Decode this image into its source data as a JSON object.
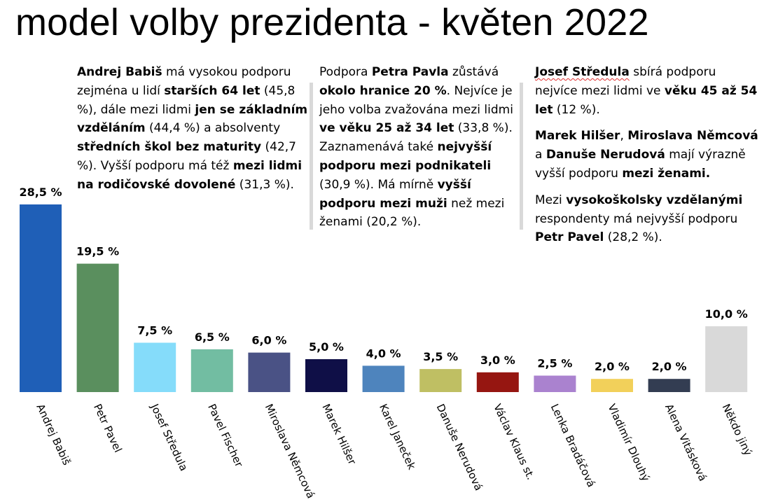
{
  "title": "model volby prezidenta - květen 2022",
  "notes": {
    "n1": {
      "name": "Andrej Babiš",
      "t1": " má vysokou podporu zejména u lidí ",
      "b1": "starších 64 let",
      "t2": " (45,8 %), dále mezi lidmi ",
      "b2": "jen se základním vzděláním",
      "t3": " (44,4 %) a absolventy ",
      "b3": "středních škol bez maturity",
      "t4": " (42,7 %). Vyšší podporu má též ",
      "b4": "mezi lidmi na rodičovské dovolené",
      "t5": " (31,3 %)."
    },
    "n2": {
      "t1": "Podpora ",
      "b1": "Petra Pavla",
      "t2": " zůstává ",
      "b2": "okolo hranice 20 %",
      "t3": ". Nejvíce je jeho volba zvažována mezi lidmi ",
      "b3": "ve věku 25 až 34 let",
      "t4": " (33,8 %). Zaznamenává také ",
      "b4": "nejvyšší podporu mezi podnikateli",
      "t5": " (30,9 %). Má mírně ",
      "b5": "vyšší podporu mezi muži",
      "t6": " než mezi ženami (20,2 %)."
    },
    "n3": {
      "p1_b1": "Josef Středula",
      "p1_t1": " sbírá podporu nejvíce mezi lidmi ve ",
      "p1_b2": "věku 45 až 54 let",
      "p1_t2": " (12 %).",
      "p2_b1": "Marek Hilšer",
      "p2_t1": ", ",
      "p2_b2": "Miroslava Němcová",
      "p2_t2": " a ",
      "p2_b3": "Danuše Nerudová",
      "p2_t3": " mají výrazně vyšší podporu ",
      "p2_b4": "mezi ženami.",
      "p3_t1": "Mezi ",
      "p3_b1": "vysokoškolsky vzdělanými",
      "p3_t2": " respondenty má nejvyšší podporu ",
      "p3_b2": "Petr Pavel",
      "p3_t3": " (28,2 %)."
    }
  },
  "chart_data": {
    "type": "bar",
    "categories": [
      "Andrej Babiš",
      "Petr Pavel",
      "Josef Středula",
      "Pavel Fischer",
      "Miroslava Němcová",
      "Marek Hilšer",
      "Karel Janeček",
      "Danuše Nerudová",
      "Václav Klaus st.",
      "Lenka Bradáčová",
      "Vladimír Dlouhý",
      "Alena Vitásková",
      "Někdo jiný"
    ],
    "values": [
      28.5,
      19.5,
      7.5,
      6.5,
      6.0,
      5.0,
      4.0,
      3.5,
      3.0,
      2.5,
      2.0,
      2.0,
      10.0
    ],
    "data_labels": [
      "28,5 %",
      "19,5 %",
      "7,5 %",
      "6,5 %",
      "6,0 %",
      "5,0 %",
      "4,0 %",
      "3,5 %",
      "3,0 %",
      "2,5 %",
      "2,0 %",
      "2,0 %",
      "10,0 %"
    ],
    "colors": [
      "#1f5fb7",
      "#5a8f5e",
      "#85dcfa",
      "#72bda2",
      "#4a5285",
      "#0f0f47",
      "#4e84bd",
      "#bfbf63",
      "#961611",
      "#aa82cf",
      "#f2d05a",
      "#333d52",
      "#d9d9d9"
    ],
    "title": "",
    "xlabel": "",
    "ylabel": "",
    "ylim": [
      0,
      28.5
    ],
    "grid": false,
    "legend": "none"
  }
}
